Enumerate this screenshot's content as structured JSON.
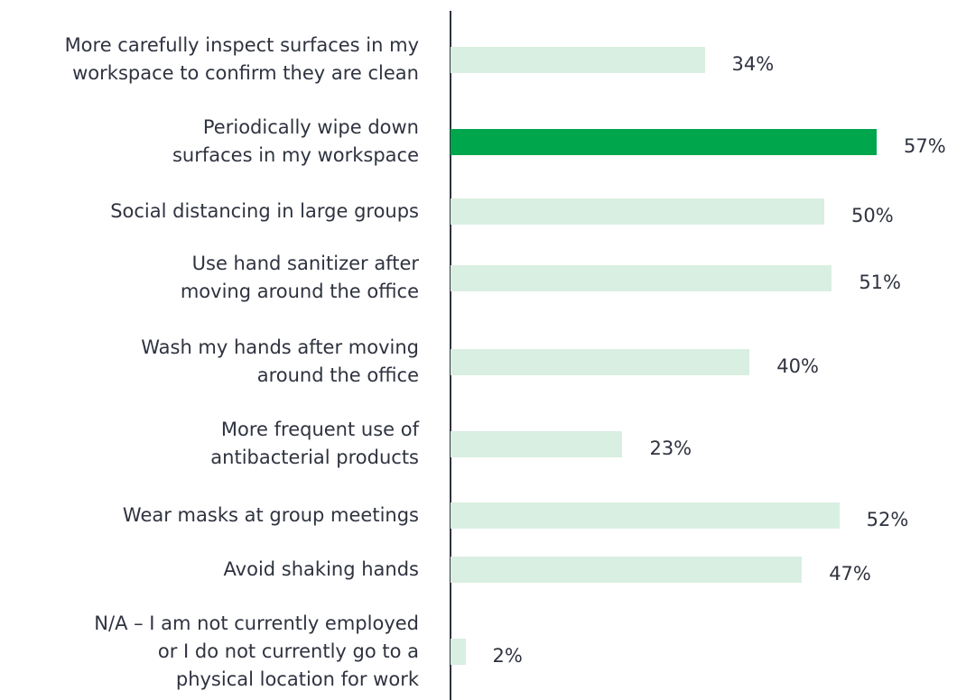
{
  "chart_data": {
    "type": "bar",
    "orientation": "horizontal",
    "categories": [
      "More carefully inspect surfaces in my\nworkspace to confirm they are clean",
      "Periodically wipe down\nsurfaces in my workspace",
      "Social distancing in large groups",
      "Use hand sanitizer after\nmoving around the office",
      "Wash my hands after moving\naround the office",
      "More frequent use of\nantibacterial products",
      "Wear masks at group meetings",
      "Avoid shaking hands",
      "N/A – I am not currently employed\nor I do not currently go to a\nphysical location for work"
    ],
    "values": [
      34,
      57,
      50,
      51,
      40,
      23,
      52,
      47,
      2
    ],
    "value_labels": [
      "34%",
      "57%",
      "50%",
      "51%",
      "40%",
      "23%",
      "52%",
      "47%",
      "2%"
    ],
    "highlight_index": 1,
    "xlim": [
      0,
      57
    ],
    "grid": false,
    "legend": "none",
    "title": "",
    "xlabel": "",
    "ylabel": ""
  },
  "colors": {
    "bar": "#d9efe1",
    "highlight": "#00a64c",
    "text": "#2f3340",
    "axis": "#2f3340"
  }
}
